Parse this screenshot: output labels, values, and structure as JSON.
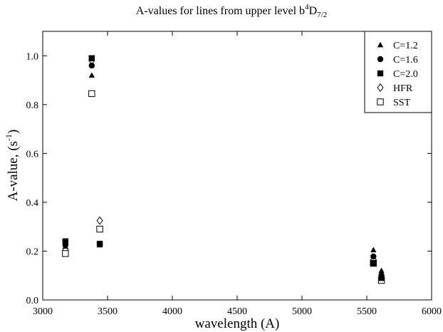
{
  "chart_data": {
    "type": "scatter",
    "title": {
      "prefix": "A-values for lines from upper level b",
      "sup": "4",
      "main": "D",
      "sub": "7/2"
    },
    "xlabel": "wavelength (A)",
    "ylabel": {
      "prefix": "A-value, (s",
      "sup": "-1",
      "suffix": ")"
    },
    "xlim": [
      3000,
      6000
    ],
    "ylim": [
      0.0,
      1.1
    ],
    "xticks": [
      3000,
      3500,
      4000,
      4500,
      5000,
      5500,
      6000
    ],
    "yticks": [
      0.0,
      0.2,
      0.4,
      0.6,
      0.8,
      1.0
    ],
    "ytick_labels": [
      "0.0",
      "0.2",
      "0.4",
      "0.6",
      "0.8",
      "1.0"
    ],
    "grid": false,
    "legend_position": "top-right",
    "colors": {
      "axis": "#000000",
      "marker": "#000000",
      "background": "#ffffff"
    },
    "series": [
      {
        "name": "C=1.2",
        "marker": "triangle-filled",
        "points": [
          {
            "x": 3175,
            "y": 0.22
          },
          {
            "x": 3378,
            "y": 0.92
          },
          {
            "x": 3440,
            "y": 0.225
          },
          {
            "x": 5551,
            "y": 0.205
          },
          {
            "x": 5613,
            "y": 0.12
          }
        ]
      },
      {
        "name": "C=1.6",
        "marker": "circle-filled",
        "points": [
          {
            "x": 3175,
            "y": 0.225
          },
          {
            "x": 3378,
            "y": 0.96
          },
          {
            "x": 3440,
            "y": 0.228
          },
          {
            "x": 5551,
            "y": 0.178
          },
          {
            "x": 5613,
            "y": 0.1
          }
        ]
      },
      {
        "name": "C=2.0",
        "marker": "square-filled",
        "points": [
          {
            "x": 3175,
            "y": 0.24
          },
          {
            "x": 3378,
            "y": 0.99
          },
          {
            "x": 3440,
            "y": 0.23
          },
          {
            "x": 5551,
            "y": 0.15
          },
          {
            "x": 5613,
            "y": 0.09
          }
        ]
      },
      {
        "name": "HFR",
        "marker": "diamond-open",
        "points": [
          {
            "x": 3175,
            "y": 0.205
          },
          {
            "x": 3378,
            "y": 0.98
          },
          {
            "x": 3440,
            "y": 0.325
          },
          {
            "x": 5551,
            "y": 0.165
          },
          {
            "x": 5613,
            "y": 0.085
          }
        ]
      },
      {
        "name": "SST",
        "marker": "square-open",
        "points": [
          {
            "x": 3175,
            "y": 0.19
          },
          {
            "x": 3378,
            "y": 0.845
          },
          {
            "x": 3440,
            "y": 0.29
          },
          {
            "x": 5551,
            "y": 0.15
          },
          {
            "x": 5613,
            "y": 0.08
          }
        ]
      }
    ]
  }
}
